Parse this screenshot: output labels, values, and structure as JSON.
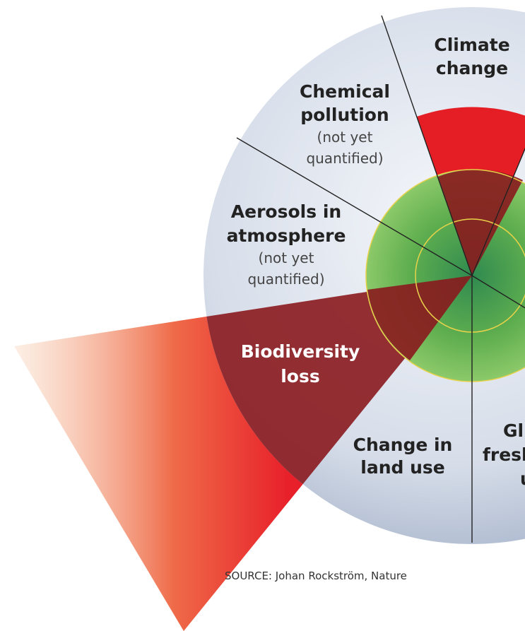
{
  "sectors": [
    {
      "lines": [
        "Climate",
        "change"
      ]
    },
    {
      "lines": [
        "Chemical",
        "pollution"
      ],
      "note": [
        "(not yet",
        "quantified)"
      ]
    },
    {
      "lines": [
        "Aerosols in",
        "atmosphere"
      ],
      "note": [
        "(not yet",
        "quantified)"
      ]
    },
    {
      "lines": [
        "Biodiversity",
        "loss"
      ]
    },
    {
      "lines": [
        "Change in",
        "land use"
      ]
    },
    {
      "lines": [
        "Gl",
        "fresh",
        "u"
      ]
    }
  ],
  "source": "SOURCE: Johan Rockström, Nature"
}
